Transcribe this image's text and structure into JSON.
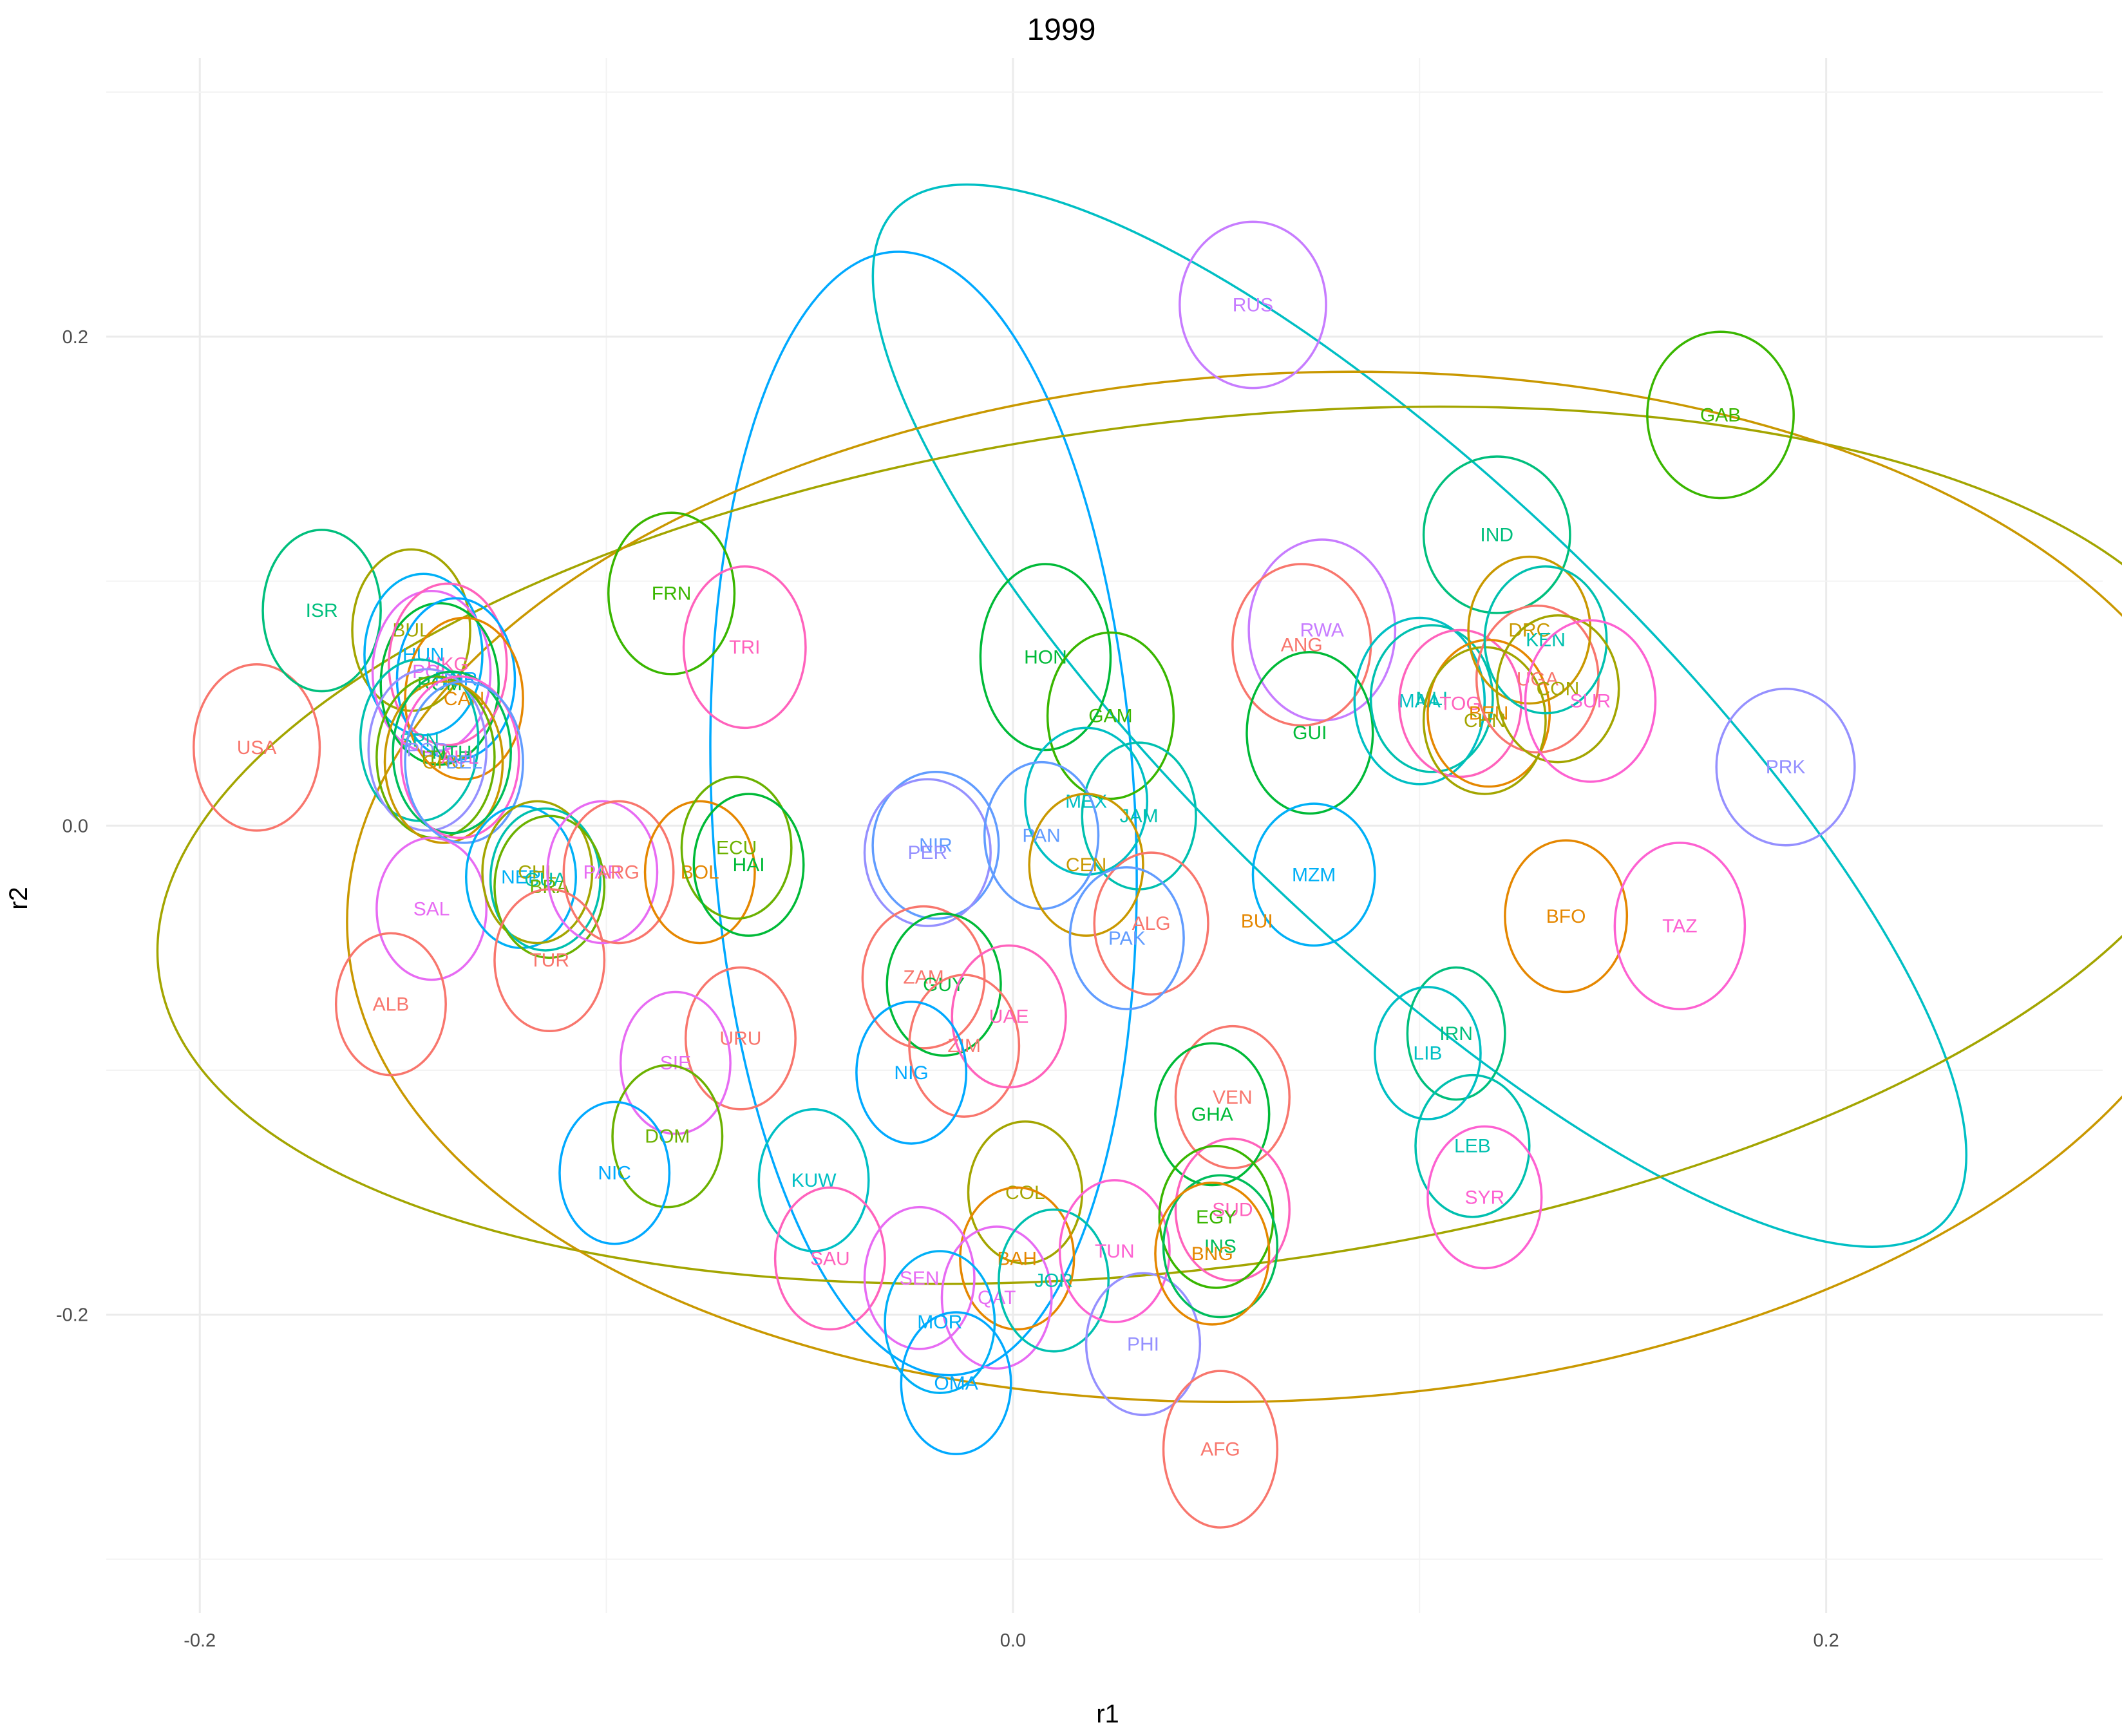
{
  "chart_data": {
    "type": "scatter",
    "title": "1999",
    "xlabel": "r1",
    "ylabel": "r2",
    "xlim": [
      -0.223,
      0.268
    ],
    "ylim": [
      -0.322,
      0.314
    ],
    "x_ticks": [
      -0.2,
      0.0,
      0.2
    ],
    "x_tick_labels": [
      "-0.2",
      "0.0",
      "0.2"
    ],
    "y_ticks": [
      -0.2,
      0.0,
      0.2
    ],
    "y_tick_labels": [
      "-0.2",
      "0.0",
      "0.2"
    ],
    "grid": true,
    "legend": "none",
    "points": [
      {
        "label": "USA",
        "x": -0.186,
        "y": 0.032,
        "rx": 0.0155,
        "ry": 0.034,
        "color": "#F8766D"
      },
      {
        "label": "ISR",
        "x": -0.17,
        "y": 0.088,
        "rx": 0.0145,
        "ry": 0.033,
        "color": "#00BF7D"
      },
      {
        "label": "BUL",
        "x": -0.148,
        "y": 0.08,
        "rx": 0.0145,
        "ry": 0.033,
        "color": "#A3A500"
      },
      {
        "label": "HUN",
        "x": -0.145,
        "y": 0.07,
        "rx": 0.0145,
        "ry": 0.033,
        "color": "#00B0F6"
      },
      {
        "label": "POL",
        "x": -0.143,
        "y": 0.063,
        "rx": 0.0145,
        "ry": 0.033,
        "color": "#E76BF3"
      },
      {
        "label": "ROM",
        "x": -0.141,
        "y": 0.058,
        "rx": 0.0145,
        "ry": 0.033,
        "color": "#00BA38"
      },
      {
        "label": "UKG",
        "x": -0.139,
        "y": 0.066,
        "rx": 0.0145,
        "ry": 0.033,
        "color": "#FF62BC"
      },
      {
        "label": "NOR",
        "x": -0.137,
        "y": 0.06,
        "rx": 0.0145,
        "ry": 0.033,
        "color": "#00A9FF"
      },
      {
        "label": "CAN",
        "x": -0.135,
        "y": 0.052,
        "rx": 0.0145,
        "ry": 0.033,
        "color": "#E58700"
      },
      {
        "label": "SPN",
        "x": -0.146,
        "y": 0.035,
        "rx": 0.0145,
        "ry": 0.033,
        "color": "#00C0AF"
      },
      {
        "label": "POR",
        "x": -0.144,
        "y": 0.031,
        "rx": 0.0145,
        "ry": 0.033,
        "color": "#9590FF"
      },
      {
        "label": "ITA",
        "x": -0.142,
        "y": 0.028,
        "rx": 0.0145,
        "ry": 0.033,
        "color": "#6BB100"
      },
      {
        "label": "GRC",
        "x": -0.14,
        "y": 0.026,
        "rx": 0.0145,
        "ry": 0.033,
        "color": "#C99800"
      },
      {
        "label": "NTH",
        "x": -0.138,
        "y": 0.03,
        "rx": 0.0145,
        "ry": 0.033,
        "color": "#00BD5C"
      },
      {
        "label": "AUL",
        "x": -0.136,
        "y": 0.028,
        "rx": 0.0145,
        "ry": 0.033,
        "color": "#FD61D1"
      },
      {
        "label": "BEL",
        "x": -0.135,
        "y": 0.026,
        "rx": 0.0145,
        "ry": 0.033,
        "color": "#619CFF"
      },
      {
        "label": "FRN",
        "x": -0.084,
        "y": 0.095,
        "rx": 0.0155,
        "ry": 0.033,
        "color": "#39B600"
      },
      {
        "label": "TRI",
        "x": -0.066,
        "y": 0.073,
        "rx": 0.015,
        "ry": 0.033,
        "color": "#FF62BC"
      },
      {
        "label": "SAL",
        "x": -0.143,
        "y": -0.034,
        "rx": 0.0135,
        "ry": 0.029,
        "color": "#E76BF3"
      },
      {
        "label": "ALB",
        "x": -0.153,
        "y": -0.073,
        "rx": 0.0135,
        "ry": 0.029,
        "color": "#F8766D"
      },
      {
        "label": "NEP",
        "x": -0.121,
        "y": -0.021,
        "rx": 0.0135,
        "ry": 0.029,
        "color": "#00B0F6"
      },
      {
        "label": "CHL",
        "x": -0.117,
        "y": -0.019,
        "rx": 0.0135,
        "ry": 0.029,
        "color": "#A3A500"
      },
      {
        "label": "GUA",
        "x": -0.115,
        "y": -0.022,
        "rx": 0.0135,
        "ry": 0.029,
        "color": "#00C0AF"
      },
      {
        "label": "BRA",
        "x": -0.114,
        "y": -0.025,
        "rx": 0.0135,
        "ry": 0.029,
        "color": "#6BB100"
      },
      {
        "label": "TUR",
        "x": -0.114,
        "y": -0.055,
        "rx": 0.0135,
        "ry": 0.029,
        "color": "#F8766D"
      },
      {
        "label": "PAR",
        "x": -0.101,
        "y": -0.019,
        "rx": 0.0135,
        "ry": 0.029,
        "color": "#E76BF3"
      },
      {
        "label": "ARG",
        "x": -0.097,
        "y": -0.019,
        "rx": 0.0135,
        "ry": 0.029,
        "color": "#F8766D"
      },
      {
        "label": "BOL",
        "x": -0.077,
        "y": -0.019,
        "rx": 0.0135,
        "ry": 0.029,
        "color": "#E58700"
      },
      {
        "label": "ECU",
        "x": -0.068,
        "y": -0.009,
        "rx": 0.0135,
        "ry": 0.029,
        "color": "#6BB100"
      },
      {
        "label": "HAI",
        "x": -0.065,
        "y": -0.016,
        "rx": 0.0135,
        "ry": 0.029,
        "color": "#00BA38"
      },
      {
        "label": "URU",
        "x": -0.067,
        "y": -0.087,
        "rx": 0.0135,
        "ry": 0.029,
        "color": "#F8766D"
      },
      {
        "label": "SIE",
        "x": -0.083,
        "y": -0.097,
        "rx": 0.0135,
        "ry": 0.029,
        "color": "#E76BF3"
      },
      {
        "label": "DOM",
        "x": -0.085,
        "y": -0.127,
        "rx": 0.0135,
        "ry": 0.029,
        "color": "#6BB100"
      },
      {
        "label": "NIC",
        "x": -0.098,
        "y": -0.142,
        "rx": 0.0135,
        "ry": 0.029,
        "color": "#00A9FF"
      },
      {
        "label": "KUW",
        "x": -0.049,
        "y": -0.145,
        "rx": 0.0135,
        "ry": 0.029,
        "color": "#00BFC4"
      },
      {
        "label": "SAU",
        "x": -0.045,
        "y": -0.177,
        "rx": 0.0135,
        "ry": 0.029,
        "color": "#FF62BC"
      },
      {
        "label": "NIR",
        "x": -0.019,
        "y": -0.008,
        "rx": 0.0155,
        "ry": 0.03,
        "color": "#619CFF"
      },
      {
        "label": "PER",
        "x": -0.021,
        "y": -0.011,
        "rx": 0.0155,
        "ry": 0.03,
        "color": "#9590FF"
      },
      {
        "label": "ZAM",
        "x": -0.022,
        "y": -0.062,
        "rx": 0.015,
        "ry": 0.029,
        "color": "#F8766D"
      },
      {
        "label": "GUY",
        "x": -0.017,
        "y": -0.065,
        "rx": 0.014,
        "ry": 0.029,
        "color": "#00BA38"
      },
      {
        "label": "ZIM",
        "x": -0.012,
        "y": -0.09,
        "rx": 0.0135,
        "ry": 0.029,
        "color": "#F8766D"
      },
      {
        "label": "UAE",
        "x": -0.001,
        "y": -0.078,
        "rx": 0.014,
        "ry": 0.029,
        "color": "#FF62BC"
      },
      {
        "label": "NIG",
        "x": -0.025,
        "y": -0.101,
        "rx": 0.0135,
        "ry": 0.029,
        "color": "#00A9FF"
      },
      {
        "label": "COL",
        "x": 0.003,
        "y": -0.15,
        "rx": 0.014,
        "ry": 0.029,
        "color": "#A3A500"
      },
      {
        "label": "BAH",
        "x": 0.001,
        "y": -0.177,
        "rx": 0.014,
        "ry": 0.029,
        "color": "#E58700"
      },
      {
        "label": "SEN",
        "x": -0.023,
        "y": -0.185,
        "rx": 0.0135,
        "ry": 0.029,
        "color": "#E76BF3"
      },
      {
        "label": "QAT",
        "x": -0.004,
        "y": -0.193,
        "rx": 0.0135,
        "ry": 0.029,
        "color": "#E76BF3"
      },
      {
        "label": "JOR",
        "x": 0.01,
        "y": -0.186,
        "rx": 0.0135,
        "ry": 0.029,
        "color": "#00C0AF"
      },
      {
        "label": "TUN",
        "x": 0.025,
        "y": -0.174,
        "rx": 0.0135,
        "ry": 0.029,
        "color": "#FD61D1"
      },
      {
        "label": "MOR",
        "x": -0.018,
        "y": -0.203,
        "rx": 0.0135,
        "ry": 0.029,
        "color": "#00B0F6"
      },
      {
        "label": "OMA",
        "x": -0.014,
        "y": -0.228,
        "rx": 0.0135,
        "ry": 0.029,
        "color": "#00A9FF"
      },
      {
        "label": "PHI",
        "x": 0.032,
        "y": -0.212,
        "rx": 0.014,
        "ry": 0.029,
        "color": "#9590FF"
      },
      {
        "label": "HON",
        "x": 0.008,
        "y": 0.069,
        "rx": 0.016,
        "ry": 0.038,
        "color": "#00BA38"
      },
      {
        "label": "GAM",
        "x": 0.024,
        "y": 0.045,
        "rx": 0.0155,
        "ry": 0.034,
        "color": "#39B600"
      },
      {
        "label": "MEX",
        "x": 0.018,
        "y": 0.01,
        "rx": 0.015,
        "ry": 0.03,
        "color": "#00BFC4"
      },
      {
        "label": "JAM",
        "x": 0.031,
        "y": 0.004,
        "rx": 0.014,
        "ry": 0.03,
        "color": "#00C0AF"
      },
      {
        "label": "PAN",
        "x": 0.007,
        "y": -0.004,
        "rx": 0.014,
        "ry": 0.03,
        "color": "#619CFF"
      },
      {
        "label": "CEN",
        "x": 0.018,
        "y": -0.016,
        "rx": 0.014,
        "ry": 0.029,
        "color": "#C99800"
      },
      {
        "label": "ALG",
        "x": 0.034,
        "y": -0.04,
        "rx": 0.014,
        "ry": 0.029,
        "color": "#F8766D"
      },
      {
        "label": "PAK",
        "x": 0.028,
        "y": -0.046,
        "rx": 0.014,
        "ry": 0.029,
        "color": "#619CFF"
      },
      {
        "label": "RUS",
        "x": 0.059,
        "y": 0.213,
        "rx": 0.018,
        "ry": 0.034,
        "color": "#C77CFF"
      },
      {
        "label": "RWA",
        "x": 0.076,
        "y": 0.08,
        "rx": 0.018,
        "ry": 0.037,
        "color": "#C77CFF"
      },
      {
        "label": "ANG",
        "x": 0.071,
        "y": 0.074,
        "rx": 0.017,
        "ry": 0.033,
        "color": "#F8766D"
      },
      {
        "label": "GUI",
        "x": 0.073,
        "y": 0.038,
        "rx": 0.0155,
        "ry": 0.033,
        "color": "#00BA38"
      },
      {
        "label": "MZM",
        "x": 0.074,
        "y": -0.02,
        "rx": 0.015,
        "ry": 0.029,
        "color": "#00B0F6"
      },
      {
        "label": "BUI",
        "x": 0.06,
        "y": -0.039,
        "rx": 0.0,
        "ry": 0.0,
        "color": "#E58700"
      },
      {
        "label": "VEN",
        "x": 0.054,
        "y": -0.111,
        "rx": 0.014,
        "ry": 0.029,
        "color": "#F8766D"
      },
      {
        "label": "GHA",
        "x": 0.049,
        "y": -0.118,
        "rx": 0.014,
        "ry": 0.029,
        "color": "#00BA38"
      },
      {
        "label": "SUD",
        "x": 0.054,
        "y": -0.157,
        "rx": 0.014,
        "ry": 0.029,
        "color": "#FF62BC"
      },
      {
        "label": "EGY",
        "x": 0.05,
        "y": -0.16,
        "rx": 0.014,
        "ry": 0.029,
        "color": "#39B600"
      },
      {
        "label": "INS",
        "x": 0.051,
        "y": -0.172,
        "rx": 0.014,
        "ry": 0.029,
        "color": "#00BD5C"
      },
      {
        "label": "BNG",
        "x": 0.049,
        "y": -0.175,
        "rx": 0.014,
        "ry": 0.029,
        "color": "#E58700"
      },
      {
        "label": "AFG",
        "x": 0.051,
        "y": -0.255,
        "rx": 0.014,
        "ry": 0.032,
        "color": "#F8766D"
      },
      {
        "label": "IND",
        "x": 0.119,
        "y": 0.119,
        "rx": 0.018,
        "ry": 0.032,
        "color": "#00BF7D"
      },
      {
        "label": "MAA",
        "x": 0.1,
        "y": 0.051,
        "rx": 0.016,
        "ry": 0.034,
        "color": "#00BFC4"
      },
      {
        "label": "MLI",
        "x": 0.103,
        "y": 0.052,
        "rx": 0.015,
        "ry": 0.03,
        "color": "#00C0AF"
      },
      {
        "label": "TOG",
        "x": 0.11,
        "y": 0.05,
        "rx": 0.015,
        "ry": 0.03,
        "color": "#FF62BC"
      },
      {
        "label": "BEN",
        "x": 0.117,
        "y": 0.046,
        "rx": 0.015,
        "ry": 0.03,
        "color": "#E58700"
      },
      {
        "label": "CHN",
        "x": 0.116,
        "y": 0.043,
        "rx": 0.015,
        "ry": 0.03,
        "color": "#A3A500"
      },
      {
        "label": "UGA",
        "x": 0.129,
        "y": 0.06,
        "rx": 0.015,
        "ry": 0.03,
        "color": "#F8766D"
      },
      {
        "label": "DRC",
        "x": 0.127,
        "y": 0.08,
        "rx": 0.015,
        "ry": 0.03,
        "color": "#C99800"
      },
      {
        "label": "KEN",
        "x": 0.131,
        "y": 0.076,
        "rx": 0.015,
        "ry": 0.03,
        "color": "#00C0AF"
      },
      {
        "label": "CON",
        "x": 0.134,
        "y": 0.056,
        "rx": 0.015,
        "ry": 0.03,
        "color": "#A3A500"
      },
      {
        "label": "SUR",
        "x": 0.142,
        "y": 0.051,
        "rx": 0.016,
        "ry": 0.033,
        "color": "#FD61D1"
      },
      {
        "label": "GAB",
        "x": 0.174,
        "y": 0.168,
        "rx": 0.018,
        "ry": 0.034,
        "color": "#39B600"
      },
      {
        "label": "PRK",
        "x": 0.19,
        "y": 0.024,
        "rx": 0.017,
        "ry": 0.032,
        "color": "#9590FF"
      },
      {
        "label": "BFO",
        "x": 0.136,
        "y": -0.037,
        "rx": 0.015,
        "ry": 0.031,
        "color": "#E58700"
      },
      {
        "label": "TAZ",
        "x": 0.164,
        "y": -0.041,
        "rx": 0.016,
        "ry": 0.034,
        "color": "#FD61D1"
      },
      {
        "label": "IRN",
        "x": 0.109,
        "y": -0.085,
        "rx": 0.012,
        "ry": 0.027,
        "color": "#00BF7D"
      },
      {
        "label": "LIB",
        "x": 0.102,
        "y": -0.093,
        "rx": 0.013,
        "ry": 0.027,
        "color": "#00BFC4"
      },
      {
        "label": "LEB",
        "x": 0.113,
        "y": -0.131,
        "rx": 0.014,
        "ry": 0.029,
        "color": "#00C0AF"
      },
      {
        "label": "SYR",
        "x": 0.116,
        "y": -0.152,
        "rx": 0.014,
        "ry": 0.029,
        "color": "#FD61D1"
      }
    ],
    "big_ellipses": [
      {
        "cx": -0.022,
        "cy": 0.005,
        "rx": 0.052,
        "ry": 0.23,
        "angle": 3,
        "color": "#00A9FF"
      },
      {
        "cx": 0.1,
        "cy": 0.045,
        "rx": 0.055,
        "ry": 0.298,
        "angle": 46,
        "color": "#00BFC4"
      },
      {
        "cx": 0.044,
        "cy": -0.008,
        "rx": 0.256,
        "ry": 0.173,
        "angle": 7,
        "color": "#A3A500"
      },
      {
        "cx": 0.068,
        "cy": -0.025,
        "rx": 0.232,
        "ry": 0.21,
        "angle": 3,
        "color": "#C99800"
      }
    ]
  }
}
